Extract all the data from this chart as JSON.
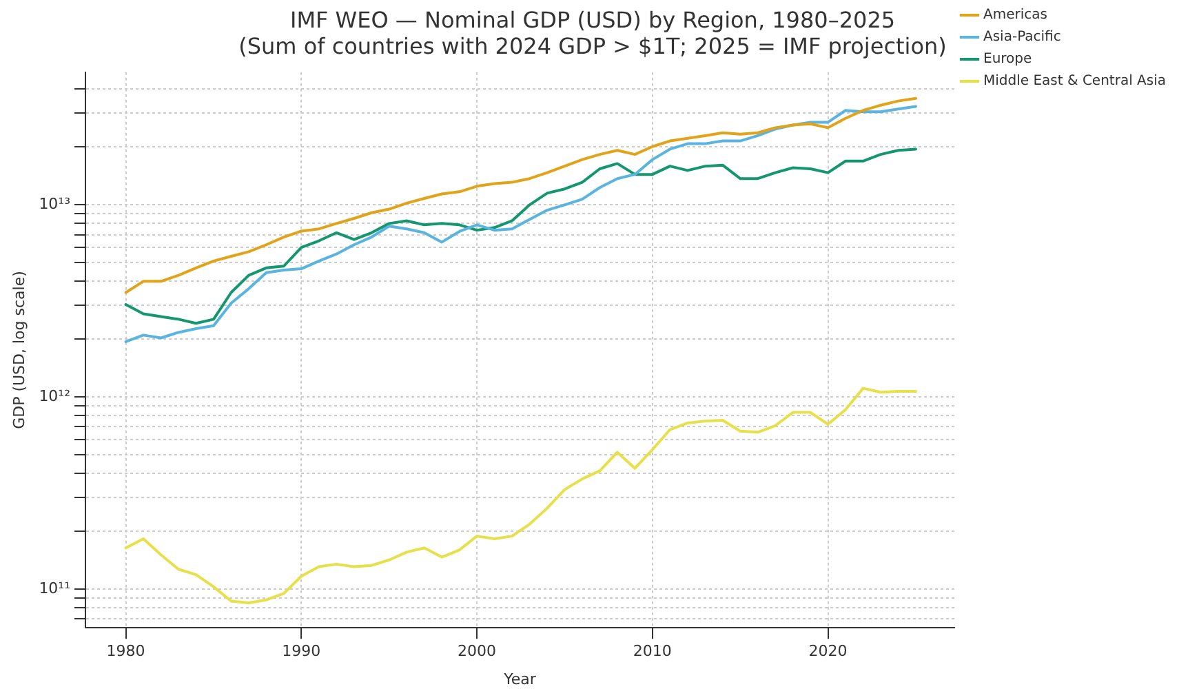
{
  "chart_data": {
    "type": "line",
    "title": "IMF WEO — Nominal GDP (USD) by Region, 1980–2025",
    "subtitle": "(Sum of countries with 2024 GDP > $1T; 2025 = IMF projection)",
    "xlabel": "Year",
    "ylabel": "GDP (USD, log scale)",
    "x": [
      1980,
      1981,
      1982,
      1983,
      1984,
      1985,
      1986,
      1987,
      1988,
      1989,
      1990,
      1991,
      1992,
      1993,
      1994,
      1995,
      1996,
      1997,
      1998,
      1999,
      2000,
      2001,
      2002,
      2003,
      2004,
      2005,
      2006,
      2007,
      2008,
      2009,
      2010,
      2011,
      2012,
      2013,
      2014,
      2015,
      2016,
      2017,
      2018,
      2019,
      2020,
      2021,
      2022,
      2023,
      2024,
      2025
    ],
    "series": [
      {
        "name": "Americas",
        "color": "#e0a31a",
        "values": [
          3500000000000.0,
          4000000000000.0,
          4000000000000.0,
          4300000000000.0,
          4700000000000.0,
          5100000000000.0,
          5400000000000.0,
          5700000000000.0,
          6200000000000.0,
          6800000000000.0,
          7300000000000.0,
          7500000000000.0,
          8000000000000.0,
          8500000000000.0,
          9100000000000.0,
          9500000000000.0,
          10200000000000.0,
          10800000000000.0,
          11400000000000.0,
          11700000000000.0,
          12500000000000.0,
          12900000000000.0,
          13100000000000.0,
          13700000000000.0,
          14700000000000.0,
          15900000000000.0,
          17200000000000.0,
          18300000000000.0,
          19200000000000.0,
          18300000000000.0,
          20100000000000.0,
          21500000000000.0,
          22200000000000.0,
          22900000000000.0,
          23700000000000.0,
          23300000000000.0,
          23700000000000.0,
          25200000000000.0,
          26000000000000.0,
          26400000000000.0,
          25200000000000.0,
          28200000000000.0,
          31000000000000.0,
          33000000000000.0,
          34700000000000.0,
          35800000000000.0
        ]
      },
      {
        "name": "Asia-Pacific",
        "color": "#5ab4e0",
        "values": [
          1940000000000.0,
          2100000000000.0,
          2030000000000.0,
          2170000000000.0,
          2270000000000.0,
          2350000000000.0,
          3080000000000.0,
          3660000000000.0,
          4440000000000.0,
          4580000000000.0,
          4650000000000.0,
          5100000000000.0,
          5550000000000.0,
          6200000000000.0,
          6800000000000.0,
          7750000000000.0,
          7500000000000.0,
          7160000000000.0,
          6400000000000.0,
          7270000000000.0,
          7870000000000.0,
          7380000000000.0,
          7500000000000.0,
          8400000000000.0,
          9380000000000.0,
          10000000000000.0,
          10700000000000.0,
          12300000000000.0,
          13700000000000.0,
          14400000000000.0,
          17200000000000.0,
          19500000000000.0,
          20800000000000.0,
          20800000000000.0,
          21500000000000.0,
          21500000000000.0,
          22900000000000.0,
          24800000000000.0,
          26000000000000.0,
          26900000000000.0,
          26900000000000.0,
          31000000000000.0,
          30500000000000.0,
          30500000000000.0,
          31500000000000.0,
          32500000000000.0
        ]
      },
      {
        "name": "Europe",
        "color": "#14966e",
        "values": [
          3030000000000.0,
          2710000000000.0,
          2620000000000.0,
          2540000000000.0,
          2420000000000.0,
          2540000000000.0,
          3500000000000.0,
          4300000000000.0,
          4700000000000.0,
          4800000000000.0,
          6000000000000.0,
          6500000000000.0,
          7160000000000.0,
          6600000000000.0,
          7160000000000.0,
          8000000000000.0,
          8260000000000.0,
          7870000000000.0,
          8000000000000.0,
          7870000000000.0,
          7380000000000.0,
          7620000000000.0,
          8260000000000.0,
          10000000000000.0,
          11500000000000.0,
          12100000000000.0,
          13100000000000.0,
          15400000000000.0,
          16400000000000.0,
          14400000000000.0,
          14400000000000.0,
          15900000000000.0,
          15100000000000.0,
          15900000000000.0,
          16100000000000.0,
          13700000000000.0,
          13700000000000.0,
          14700000000000.0,
          15600000000000.0,
          15400000000000.0,
          14700000000000.0,
          16900000000000.0,
          16900000000000.0,
          18300000000000.0,
          19200000000000.0,
          19500000000000.0
        ]
      },
      {
        "name": "Middle East & Central Asia",
        "color": "#e8e04a",
        "values": [
          164000000000.0,
          183000000000.0,
          151000000000.0,
          127000000000.0,
          119000000000.0,
          103000000000.0,
          86700000000.0,
          85000000000.0,
          88000000000.0,
          95000000000.0,
          117000000000.0,
          131000000000.0,
          135000000000.0,
          131000000000.0,
          133000000000.0,
          142000000000.0,
          156000000000.0,
          164000000000.0,
          147000000000.0,
          160000000000.0,
          189000000000.0,
          183000000000.0,
          189000000000.0,
          218000000000.0,
          264000000000.0,
          330000000000.0,
          375000000000.0,
          413000000000.0,
          516000000000.0,
          426000000000.0,
          533000000000.0,
          677000000000.0,
          733000000000.0,
          750000000000.0,
          757000000000.0,
          665000000000.0,
          656000000000.0,
          710000000000.0,
          832000000000.0,
          832000000000.0,
          722000000000.0,
          860000000000.0,
          1110000000000.0,
          1060000000000.0,
          1070000000000.0,
          1070000000000.0
        ]
      }
    ],
    "log": "y",
    "xlim": [
      1977.7,
      2027.2
    ],
    "xticks": [
      1980,
      1990,
      2000,
      2010,
      2020
    ],
    "ylim": [
      63000000000.0,
      49000000000000.0
    ],
    "yticks": [
      {
        "value": 70000000000.0,
        "label": null
      },
      {
        "value": 80000000000.0,
        "label": null
      },
      {
        "value": 90000000000.0,
        "label": null
      },
      {
        "value": 100000000000.0,
        "label": "10¹¹"
      },
      {
        "value": 200000000000.0,
        "label": null
      },
      {
        "value": 300000000000.0,
        "label": null
      },
      {
        "value": 400000000000.0,
        "label": null
      },
      {
        "value": 500000000000.0,
        "label": null
      },
      {
        "value": 600000000000.0,
        "label": null
      },
      {
        "value": 700000000000.0,
        "label": null
      },
      {
        "value": 800000000000.0,
        "label": null
      },
      {
        "value": 900000000000.0,
        "label": null
      },
      {
        "value": 1000000000000.0,
        "label": "10¹²"
      },
      {
        "value": 2000000000000.0,
        "label": null
      },
      {
        "value": 3000000000000.0,
        "label": null
      },
      {
        "value": 4000000000000.0,
        "label": null
      },
      {
        "value": 5000000000000.0,
        "label": null
      },
      {
        "value": 6000000000000.0,
        "label": null
      },
      {
        "value": 7000000000000.0,
        "label": null
      },
      {
        "value": 8000000000000.0,
        "label": null
      },
      {
        "value": 9000000000000.0,
        "label": null
      },
      {
        "value": 10000000000000.0,
        "label": "10¹³"
      },
      {
        "value": 20000000000000.0,
        "label": null
      },
      {
        "value": 30000000000000.0,
        "label": null
      },
      {
        "value": 40000000000000.0,
        "label": null
      }
    ],
    "grid": true,
    "legend": "top right",
    "marker": "none",
    "line_style": "solid"
  }
}
